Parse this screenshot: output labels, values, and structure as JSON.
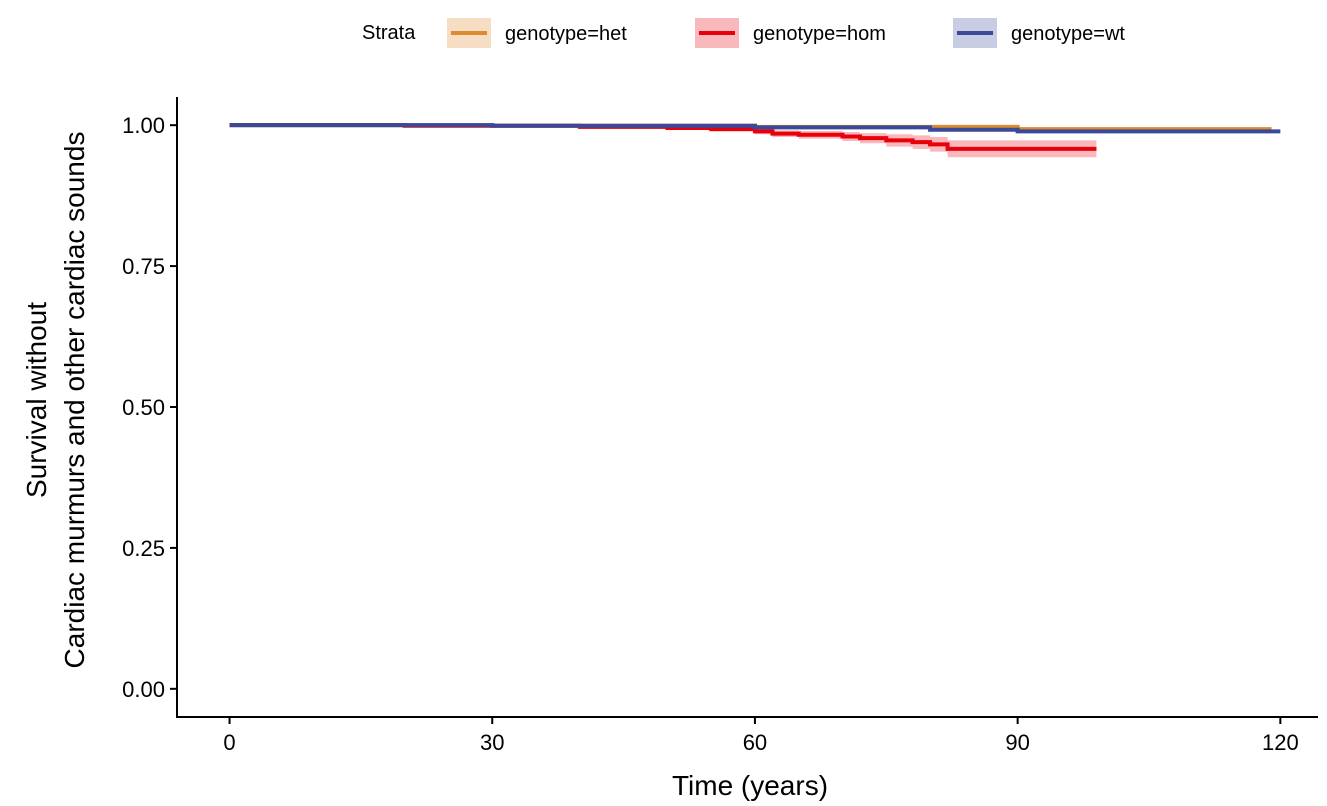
{
  "chart_data": {
    "type": "step",
    "xlabel": "Time (years)",
    "ylabel": [
      "Survival without",
      "Cardiac murmurs and other cardiac sounds"
    ],
    "legend_title": "Strata",
    "legend_position": "top",
    "xlim": [
      -6,
      124.3
    ],
    "ylim": [
      -0.05,
      1.05
    ],
    "xticks": [
      0,
      30,
      60,
      90,
      120
    ],
    "yticks": [
      {
        "value": 0,
        "label": "0.00"
      },
      {
        "value": 0.25,
        "label": "0.25"
      },
      {
        "value": 0.5,
        "label": "0.50"
      },
      {
        "value": 0.75,
        "label": "0.75"
      },
      {
        "value": 1,
        "label": "1.00"
      }
    ],
    "series": [
      {
        "name": "genotype=het",
        "color": "#e08a2e",
        "x": [
          0,
          30,
          60,
          90,
          119
        ],
        "values": [
          1.0,
          0.999,
          0.997,
          0.993,
          0.993
        ]
      },
      {
        "name": "genotype=hom",
        "color": "#e8000b",
        "x": [
          0,
          20,
          40,
          50,
          55,
          60,
          62,
          65,
          70,
          72,
          75,
          78,
          80,
          82,
          99
        ],
        "values": [
          1.0,
          0.999,
          0.997,
          0.995,
          0.993,
          0.989,
          0.985,
          0.983,
          0.98,
          0.977,
          0.973,
          0.97,
          0.966,
          0.958,
          0.958
        ],
        "lower": [
          1.0,
          0.998,
          0.995,
          0.992,
          0.989,
          0.984,
          0.979,
          0.976,
          0.972,
          0.968,
          0.962,
          0.958,
          0.953,
          0.943,
          0.943
        ],
        "upper": [
          1.0,
          1.0,
          0.999,
          0.998,
          0.997,
          0.994,
          0.991,
          0.99,
          0.988,
          0.986,
          0.984,
          0.982,
          0.979,
          0.973,
          0.973
        ]
      },
      {
        "name": "genotype=wt",
        "color": "#3a4a9a",
        "x": [
          0,
          30,
          60,
          80,
          90,
          120
        ],
        "values": [
          1.0,
          0.999,
          0.996,
          0.992,
          0.989,
          0.989
        ]
      }
    ]
  }
}
